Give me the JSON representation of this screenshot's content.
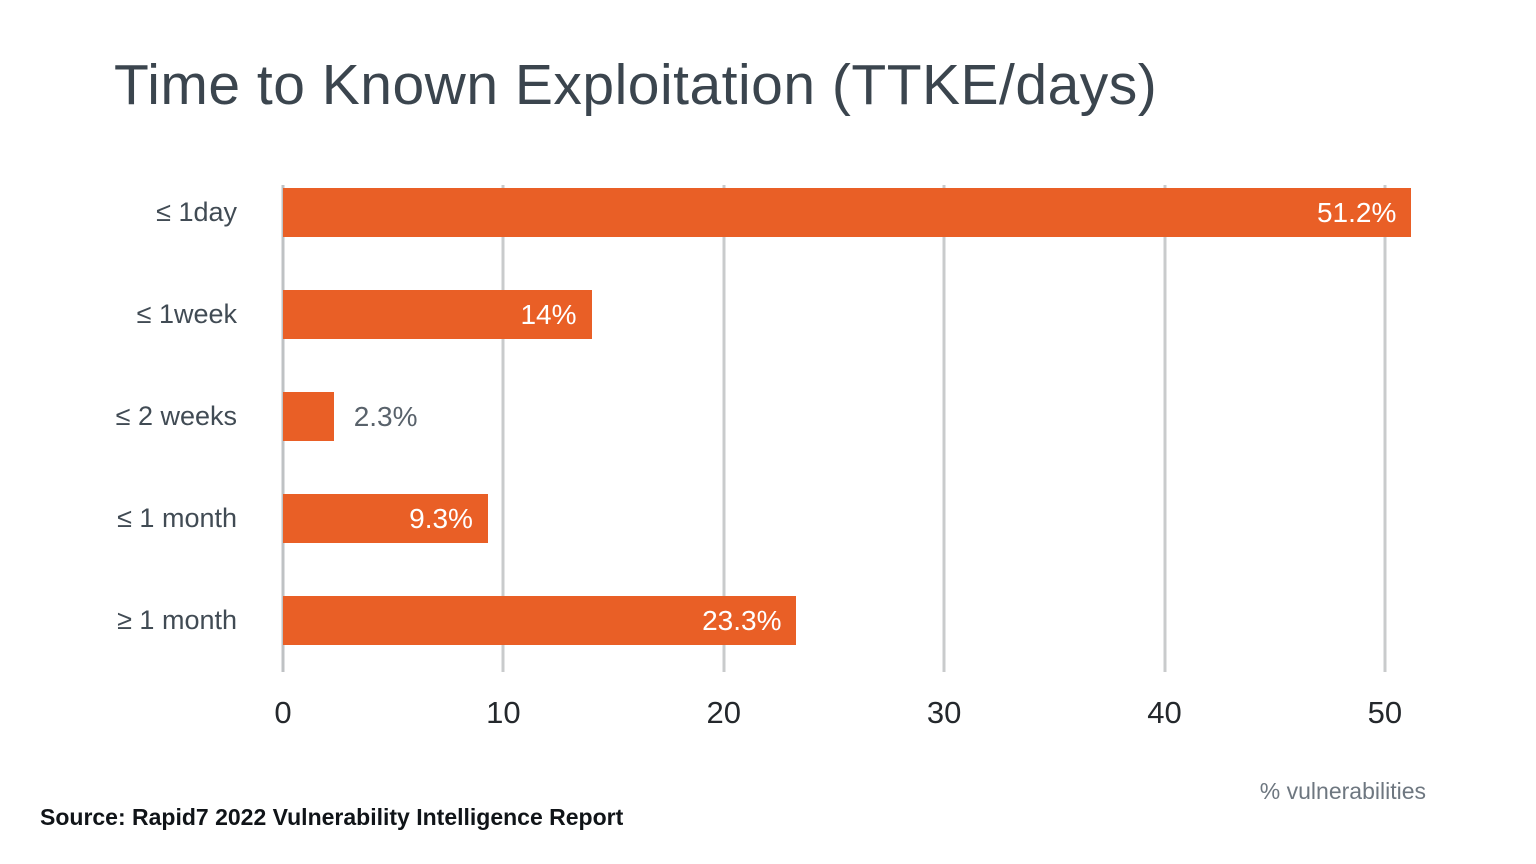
{
  "title": "Time to Known Exploitation (TTKE/days)",
  "source_note": "Source: Rapid7 2022 Vulnerability Intelligence Report",
  "axis_note": "% vulnerabilities",
  "colors": {
    "bar": "#e95f26",
    "gridline": "#c9cbcc",
    "title_text": "#3b454e",
    "category_text": "#414b54",
    "value_inside_text": "#ffffff",
    "value_outside_text": "#59626b",
    "tick_text": "#24282c",
    "axis_note_text": "#6e7780",
    "source_text": "#101418"
  },
  "chart_data": {
    "type": "bar",
    "orientation": "horizontal",
    "title": "Time to Known Exploitation (TTKE/days)",
    "categories": [
      "≤ 1day",
      "≤ 1week",
      "≤ 2 weeks",
      "≤ 1 month",
      "≥ 1 month"
    ],
    "values": [
      51.2,
      14,
      2.3,
      9.3,
      23.3
    ],
    "value_labels": [
      "51.2%",
      "14%",
      "2.3%",
      "9.3%",
      "23.3%"
    ],
    "label_inside": [
      true,
      true,
      false,
      true,
      true
    ],
    "xlabel": "% vulnerabilities",
    "ylabel": "",
    "xlim": [
      0,
      52
    ],
    "xticks": [
      0,
      10,
      20,
      30,
      40,
      50
    ],
    "grid": true,
    "legend": false
  }
}
